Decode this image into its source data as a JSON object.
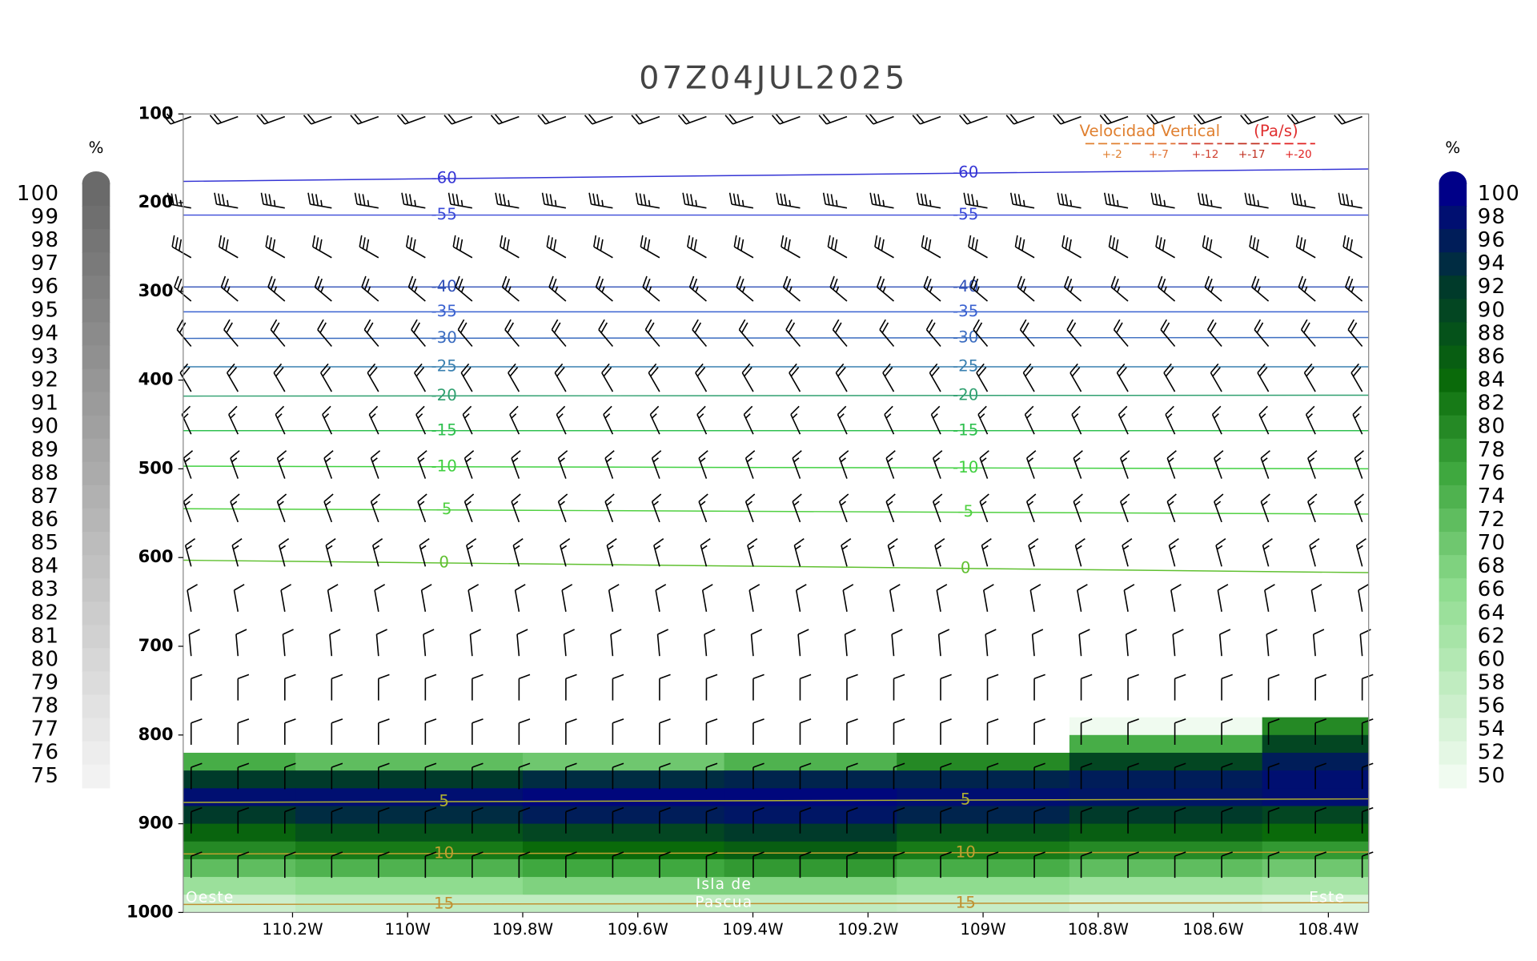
{
  "chart_data": {
    "type": "cross-section",
    "title": "07Z04JUL2025",
    "xlim": [
      -110.39,
      -108.33
    ],
    "ylim": [
      1000,
      100
    ],
    "xticks": [
      {
        "value": -110.2,
        "label": "110.2W"
      },
      {
        "value": -110.0,
        "label": "110W"
      },
      {
        "value": -109.8,
        "label": "109.8W"
      },
      {
        "value": -109.6,
        "label": "109.6W"
      },
      {
        "value": -109.4,
        "label": "109.4W"
      },
      {
        "value": -109.2,
        "label": "109.2W"
      },
      {
        "value": -109.0,
        "label": "109W"
      },
      {
        "value": -108.8,
        "label": "108.8W"
      },
      {
        "value": -108.6,
        "label": "108.6W"
      },
      {
        "value": -108.4,
        "label": "108.4W"
      }
    ],
    "yticks": [
      100,
      200,
      300,
      400,
      500,
      600,
      700,
      800,
      900,
      1000
    ],
    "annotations": [
      "Oeste",
      "Isla de",
      "Pascua",
      "Este"
    ],
    "left_colorbar": {
      "unit": "%",
      "ticks": [
        100,
        99,
        98,
        97,
        96,
        95,
        94,
        93,
        92,
        91,
        90,
        89,
        88,
        87,
        86,
        85,
        84,
        83,
        82,
        81,
        80,
        79,
        78,
        77,
        76,
        75
      ],
      "color_high": "#6a6a6a",
      "color_low": "#f2f2f2"
    },
    "right_colorbar": {
      "unit": "%",
      "ticks": [
        100,
        98,
        96,
        94,
        92,
        90,
        88,
        86,
        84,
        82,
        80,
        78,
        76,
        74,
        72,
        70,
        68,
        66,
        64,
        62,
        60,
        58,
        56,
        54,
        52,
        50
      ],
      "color_stops": [
        {
          "value": 50,
          "color": "#f0fbf0"
        },
        {
          "value": 66,
          "color": "#8fdc8f"
        },
        {
          "value": 76,
          "color": "#3fa83f"
        },
        {
          "value": 84,
          "color": "#0a6a0a"
        },
        {
          "value": 92,
          "color": "#003a2a"
        },
        {
          "value": 100,
          "color": "#000088"
        }
      ]
    },
    "relative_humidity": {
      "x": [
        -110.39,
        -110.0,
        -109.6,
        -109.3,
        -109.0,
        -108.7,
        -108.33
      ],
      "levels": [
        790,
        810,
        830,
        850,
        870,
        890,
        910,
        930,
        950,
        970,
        990
      ],
      "values": [
        [
          20,
          20,
          20,
          20,
          25,
          50,
          80
        ],
        [
          30,
          30,
          30,
          30,
          40,
          75,
          90
        ],
        [
          75,
          72,
          70,
          74,
          80,
          90,
          96
        ],
        [
          92,
          92,
          94,
          95,
          95,
          96,
          98
        ],
        [
          98,
          98,
          99,
          99,
          98,
          97,
          98
        ],
        [
          92,
          94,
          96,
          97,
          95,
          92,
          90
        ],
        [
          85,
          88,
          90,
          92,
          88,
          86,
          84
        ],
        [
          80,
          82,
          84,
          86,
          82,
          80,
          78
        ],
        [
          72,
          74,
          76,
          78,
          75,
          72,
          70
        ],
        [
          64,
          66,
          68,
          68,
          66,
          64,
          62
        ],
        [
          56,
          58,
          58,
          58,
          57,
          55,
          54
        ]
      ]
    },
    "isotherms": [
      {
        "value": -60,
        "color": "#3535d5",
        "p": [
          176,
          162
        ]
      },
      {
        "value": -55,
        "color": "#3a4ad8",
        "p": [
          214,
          214
        ]
      },
      {
        "value": -40,
        "color": "#3050b8",
        "p": [
          295,
          295
        ]
      },
      {
        "value": -35,
        "color": "#3a62d0",
        "p": [
          323,
          323
        ]
      },
      {
        "value": -30,
        "color": "#3a6cc0",
        "p": [
          353,
          352
        ]
      },
      {
        "value": -25,
        "color": "#3a80b0",
        "p": [
          385,
          385
        ]
      },
      {
        "value": -20,
        "color": "#30a070",
        "p": [
          418,
          417
        ]
      },
      {
        "value": -15,
        "color": "#30c050",
        "p": [
          457,
          457
        ]
      },
      {
        "value": -10,
        "color": "#40d040",
        "p": [
          497,
          500
        ]
      },
      {
        "value": -5,
        "color": "#50d040",
        "p": [
          545,
          551
        ]
      },
      {
        "value": 0,
        "color": "#60c030",
        "p": [
          603,
          617
        ]
      },
      {
        "value": 5,
        "color": "#b0b030",
        "p": [
          876,
          872
        ]
      },
      {
        "value": 10,
        "color": "#c0a030",
        "p": [
          934,
          932
        ]
      },
      {
        "value": 15,
        "color": "#c09030",
        "p": [
          991,
          989
        ]
      }
    ],
    "winds": {
      "levels": [
        103,
        206,
        262,
        311,
        362,
        413,
        461,
        511,
        560,
        610,
        661,
        711,
        761,
        811,
        861,
        911,
        961
      ],
      "speed": [
        20,
        35,
        30,
        25,
        20,
        20,
        15,
        15,
        15,
        15,
        10,
        10,
        10,
        10,
        10,
        10,
        10
      ],
      "direction": [
        250,
        280,
        300,
        310,
        320,
        330,
        335,
        340,
        340,
        345,
        350,
        355,
        360,
        360,
        360,
        360,
        360
      ]
    },
    "velocity_legend": {
      "title": "Velocidad Vertical",
      "unit": "(Pa/s)",
      "levels": [
        {
          "label": "+-2",
          "color": "#e08030"
        },
        {
          "label": "+-7",
          "color": "#e07030"
        },
        {
          "label": "+-12",
          "color": "#d04030"
        },
        {
          "label": "+-17",
          "color": "#c03020"
        },
        {
          "label": "+-20",
          "color": "#e02020"
        }
      ]
    }
  }
}
